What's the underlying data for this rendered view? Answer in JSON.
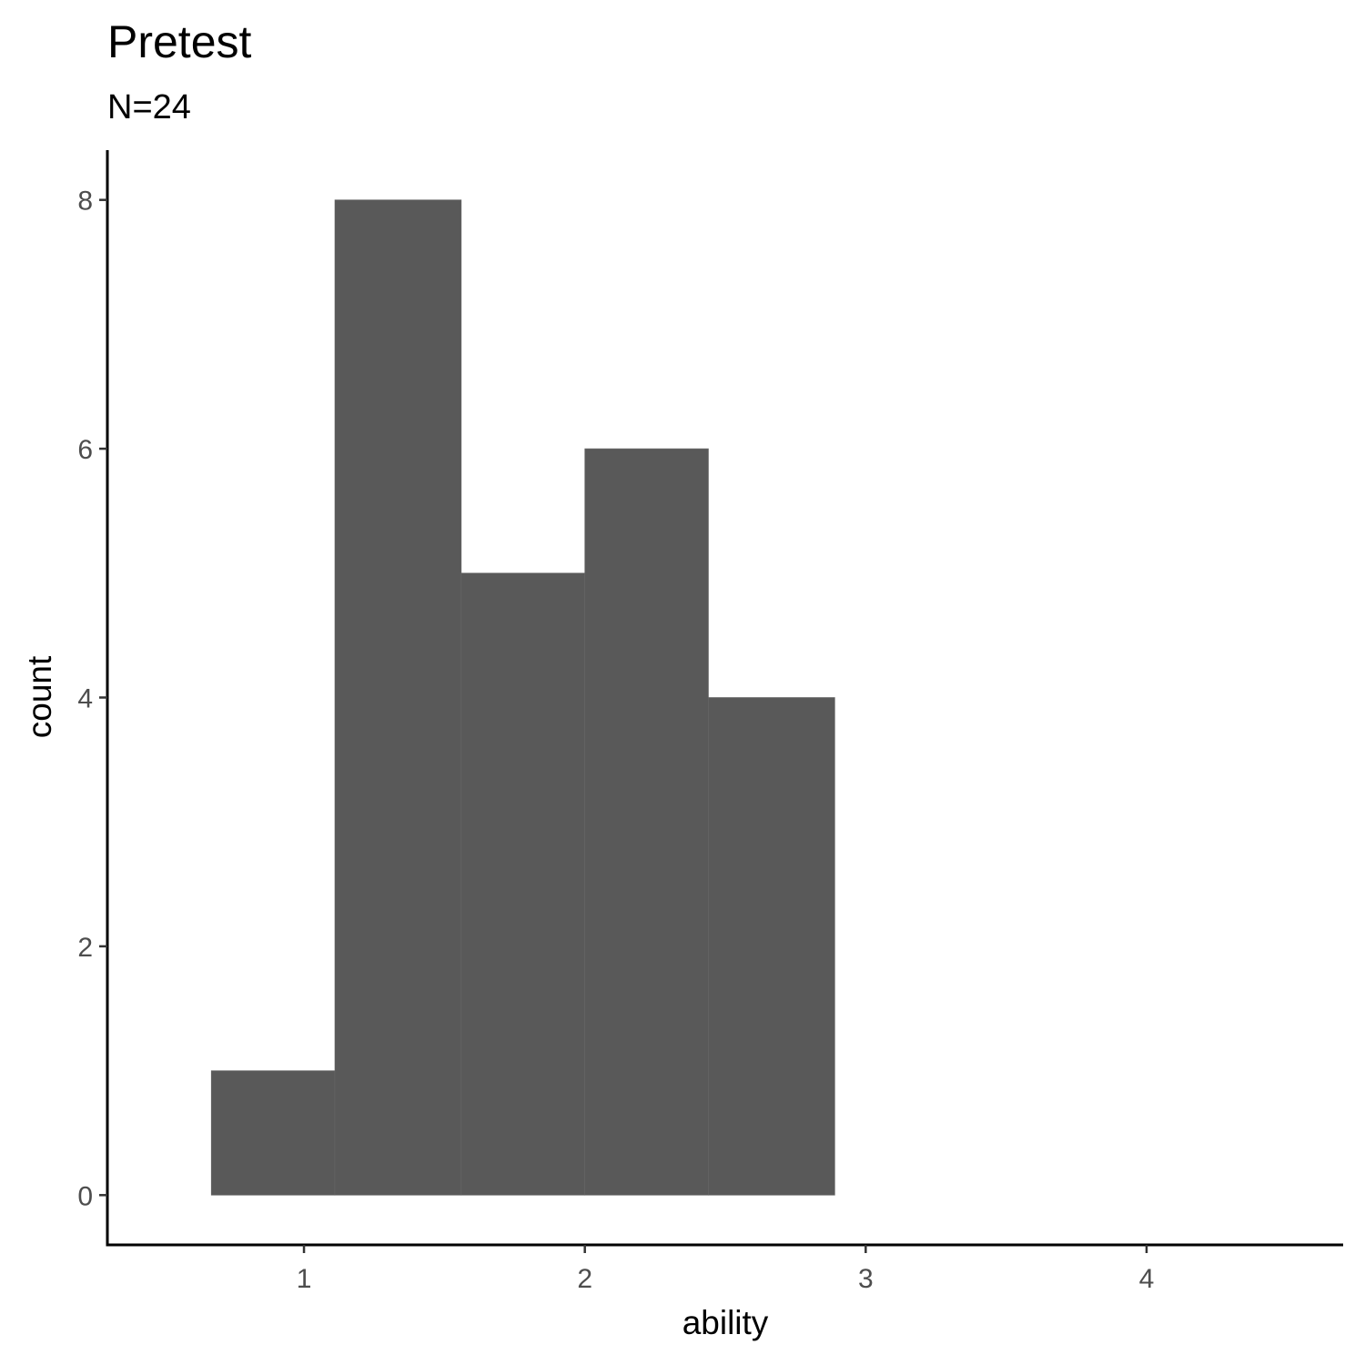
{
  "chart_data": {
    "type": "bar",
    "subtype": "histogram",
    "title": "Pretest",
    "subtitle": "N=24",
    "xlabel": "ability",
    "ylabel": "count",
    "bins": [
      {
        "x0": 0.67,
        "x1": 1.11,
        "count": 1
      },
      {
        "x0": 1.11,
        "x1": 1.56,
        "count": 8
      },
      {
        "x0": 1.56,
        "x1": 2.0,
        "count": 5
      },
      {
        "x0": 2.0,
        "x1": 2.44,
        "count": 6
      },
      {
        "x0": 2.44,
        "x1": 2.89,
        "count": 4
      }
    ],
    "xlim": [
      0.3,
      4.7
    ],
    "ylim": [
      -0.4,
      8.4
    ],
    "xticks": [
      1,
      2,
      3,
      4
    ],
    "xtick_labels": [
      "1",
      "2",
      "3",
      "4"
    ],
    "yticks": [
      0,
      2,
      4,
      6,
      8
    ],
    "ytick_labels": [
      "0",
      "2",
      "4",
      "6",
      "8"
    ],
    "bar_color": "#595959",
    "grid": false,
    "legend": "none"
  }
}
